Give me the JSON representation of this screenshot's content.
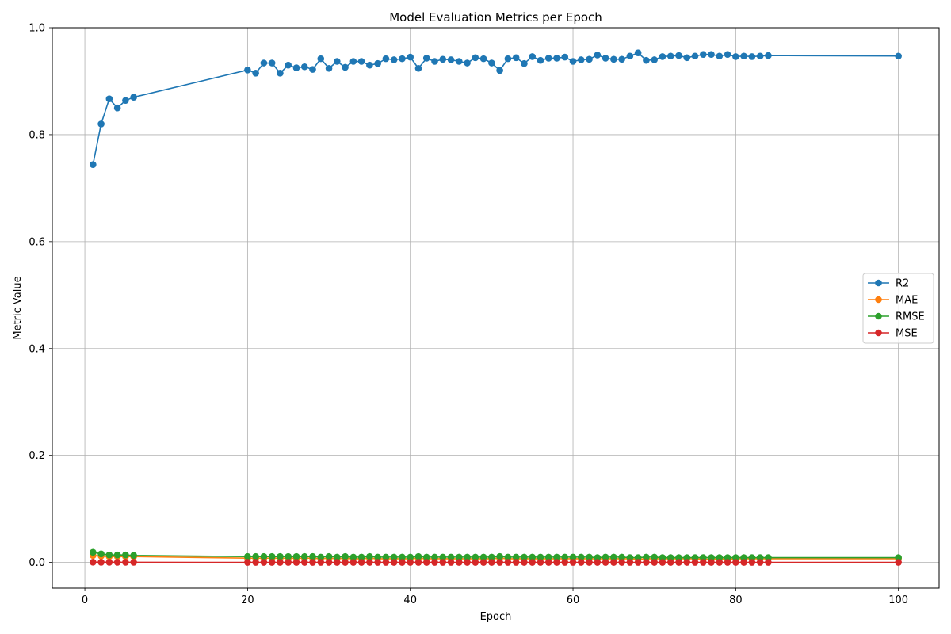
{
  "chart_data": {
    "type": "line",
    "title": "Model Evaluation Metrics per Epoch",
    "xlabel": "Epoch",
    "ylabel": "Metric Value",
    "xlim": [
      -4,
      105
    ],
    "ylim": [
      -0.048,
      1.0
    ],
    "xticks": [
      0,
      20,
      40,
      60,
      80,
      100
    ],
    "yticks": [
      0.0,
      0.2,
      0.4,
      0.6,
      0.8,
      1.0
    ],
    "xtick_labels": [
      "0",
      "20",
      "40",
      "60",
      "80",
      "100"
    ],
    "ytick_labels": [
      "0.0",
      "0.2",
      "0.4",
      "0.6",
      "0.8",
      "1.0"
    ],
    "grid": true,
    "legend_position": "center-right",
    "x": [
      1,
      2,
      3,
      4,
      5,
      6,
      20,
      21,
      22,
      23,
      24,
      25,
      26,
      27,
      28,
      29,
      30,
      31,
      32,
      33,
      34,
      35,
      36,
      37,
      38,
      39,
      40,
      41,
      42,
      43,
      44,
      45,
      46,
      47,
      48,
      49,
      50,
      51,
      52,
      53,
      54,
      55,
      56,
      57,
      58,
      59,
      60,
      61,
      62,
      63,
      64,
      65,
      66,
      67,
      68,
      69,
      70,
      71,
      72,
      73,
      74,
      75,
      76,
      77,
      78,
      79,
      80,
      81,
      82,
      83,
      84,
      100
    ],
    "series": [
      {
        "name": "R2",
        "color": "#1f77b4",
        "values": [
          0.744,
          0.82,
          0.867,
          0.85,
          0.864,
          0.87,
          0.921,
          0.915,
          0.934,
          0.934,
          0.915,
          0.93,
          0.925,
          0.927,
          0.922,
          0.942,
          0.924,
          0.937,
          0.926,
          0.937,
          0.937,
          0.93,
          0.933,
          0.942,
          0.94,
          0.942,
          0.945,
          0.924,
          0.943,
          0.937,
          0.941,
          0.94,
          0.937,
          0.934,
          0.944,
          0.942,
          0.934,
          0.92,
          0.942,
          0.944,
          0.933,
          0.946,
          0.939,
          0.943,
          0.943,
          0.945,
          0.937,
          0.94,
          0.941,
          0.949,
          0.943,
          0.941,
          0.941,
          0.947,
          0.953,
          0.939,
          0.94,
          0.946,
          0.947,
          0.948,
          0.944,
          0.947,
          0.95,
          0.95,
          0.947,
          0.95,
          0.946,
          0.947,
          0.946,
          0.947,
          0.948,
          0.947
        ]
      },
      {
        "name": "MAE",
        "color": "#ff7f0e",
        "values": [
          0.013,
          0.012,
          0.011,
          0.011,
          0.011,
          0.011,
          0.008,
          0.008,
          0.008,
          0.008,
          0.008,
          0.008,
          0.008,
          0.008,
          0.008,
          0.007,
          0.008,
          0.007,
          0.008,
          0.007,
          0.007,
          0.008,
          0.007,
          0.007,
          0.007,
          0.007,
          0.007,
          0.008,
          0.007,
          0.007,
          0.007,
          0.007,
          0.007,
          0.007,
          0.007,
          0.007,
          0.007,
          0.008,
          0.007,
          0.007,
          0.007,
          0.007,
          0.007,
          0.007,
          0.007,
          0.007,
          0.007,
          0.007,
          0.007,
          0.007,
          0.007,
          0.007,
          0.007,
          0.007,
          0.006,
          0.007,
          0.007,
          0.007,
          0.007,
          0.007,
          0.007,
          0.007,
          0.006,
          0.006,
          0.007,
          0.006,
          0.007,
          0.007,
          0.007,
          0.007,
          0.007,
          0.007
        ]
      },
      {
        "name": "RMSE",
        "color": "#2ca02c",
        "values": [
          0.019,
          0.016,
          0.014,
          0.014,
          0.014,
          0.013,
          0.011,
          0.011,
          0.011,
          0.011,
          0.011,
          0.011,
          0.011,
          0.011,
          0.011,
          0.01,
          0.011,
          0.01,
          0.011,
          0.01,
          0.01,
          0.011,
          0.01,
          0.01,
          0.01,
          0.01,
          0.01,
          0.011,
          0.01,
          0.01,
          0.01,
          0.01,
          0.01,
          0.01,
          0.01,
          0.01,
          0.01,
          0.011,
          0.01,
          0.01,
          0.01,
          0.01,
          0.01,
          0.01,
          0.01,
          0.01,
          0.01,
          0.01,
          0.01,
          0.009,
          0.01,
          0.01,
          0.01,
          0.009,
          0.009,
          0.01,
          0.01,
          0.009,
          0.009,
          0.009,
          0.009,
          0.009,
          0.009,
          0.009,
          0.009,
          0.009,
          0.009,
          0.009,
          0.009,
          0.009,
          0.009,
          0.009
        ]
      },
      {
        "name": "MSE",
        "color": "#d62728",
        "values": [
          0.0004,
          0.0003,
          0.0002,
          0.0002,
          0.0002,
          0.0002,
          0.0001,
          0.0001,
          0.0001,
          0.0001,
          0.0001,
          0.0001,
          0.0001,
          0.0001,
          0.0001,
          0.0001,
          0.0001,
          0.0001,
          0.0001,
          0.0001,
          0.0001,
          0.0001,
          0.0001,
          0.0001,
          0.0001,
          0.0001,
          0.0001,
          0.0001,
          0.0001,
          0.0001,
          0.0001,
          0.0001,
          0.0001,
          0.0001,
          0.0001,
          0.0001,
          0.0001,
          0.0001,
          0.0001,
          0.0001,
          0.0001,
          0.0001,
          0.0001,
          0.0001,
          0.0001,
          0.0001,
          0.0001,
          0.0001,
          0.0001,
          0.0001,
          0.0001,
          0.0001,
          0.0001,
          0.0001,
          0.0001,
          0.0001,
          0.0001,
          0.0001,
          0.0001,
          0.0001,
          0.0001,
          0.0001,
          0.0001,
          0.0001,
          0.0001,
          0.0001,
          0.0001,
          0.0001,
          0.0001,
          0.0001,
          0.0001,
          0.0001
        ]
      }
    ]
  }
}
